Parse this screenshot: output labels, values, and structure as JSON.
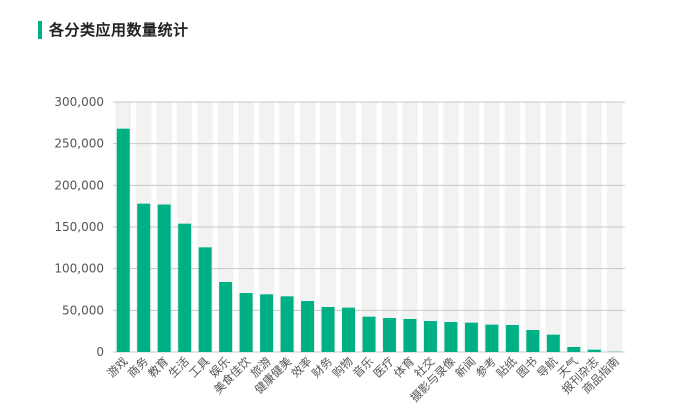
{
  "header": {
    "title": "各分类应用数量统计"
  },
  "colors": {
    "accent": "#00b085",
    "bar": "#00b085",
    "band": "#f2f2f2",
    "grid": "#c8c8c8"
  },
  "chart_data": {
    "type": "bar",
    "title": "各分类应用数量统计",
    "xlabel": "",
    "ylabel": "",
    "ylim": [
      0,
      300000
    ],
    "yticks": [
      "0",
      "50,000",
      "100,000",
      "150,000",
      "200,000",
      "250,000",
      "300,000"
    ],
    "grid": true,
    "categories": [
      "游戏",
      "商务",
      "教育",
      "生活",
      "工具",
      "娱乐",
      "美食佳饮",
      "旅游",
      "健康健美",
      "效率",
      "财务",
      "购物",
      "音乐",
      "医疗",
      "体育",
      "社交",
      "摄影与录像",
      "新闻",
      "参考",
      "贴纸",
      "图书",
      "导航",
      "天气",
      "报刊杂志",
      "商品指南"
    ],
    "values": [
      268000,
      178000,
      177000,
      154000,
      125600,
      84000,
      70800,
      69200,
      66800,
      61200,
      54000,
      53200,
      42400,
      40800,
      39600,
      37200,
      36000,
      35200,
      32800,
      32400,
      26400,
      20800,
      6000,
      2800,
      300
    ]
  }
}
